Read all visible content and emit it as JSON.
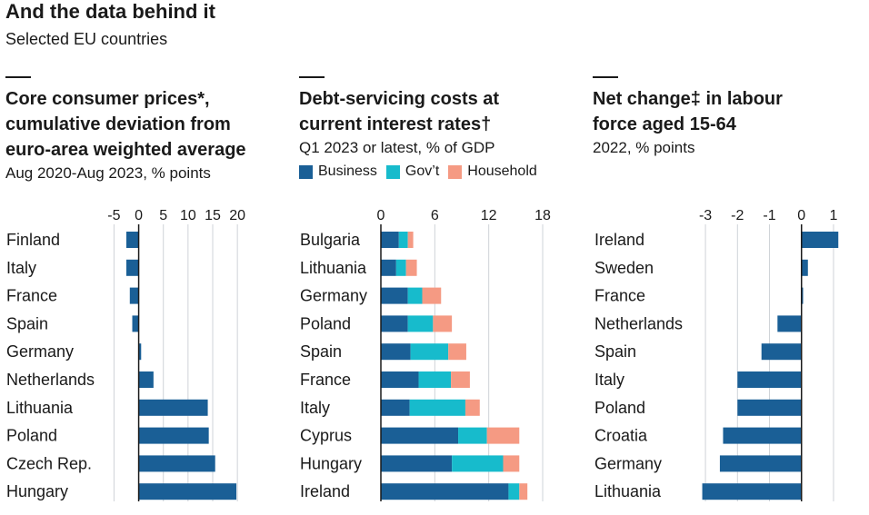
{
  "header": {
    "title": "And the data behind it",
    "subtitle": "Selected EU countries"
  },
  "colors": {
    "business": "#1a5f96",
    "govt": "#17bbcc",
    "household": "#f59a83",
    "bar": "#1a5f96",
    "grid": "#cfd3d8",
    "zero": "#1a1a1a"
  },
  "panels": [
    {
      "title_line1": "Core consumer prices*,",
      "title_line2": "cumulative deviation from",
      "title_line3": "euro-area weighted average",
      "subtitle": "Aug 2020-Aug 2023, % points"
    },
    {
      "title_line1": "Debt-servicing costs at",
      "title_line2": "current interest rates†",
      "title_line3": "",
      "subtitle": "Q1 2023 or latest, % of GDP"
    },
    {
      "title_line1": "Net change‡ in labour",
      "title_line2": "force aged 15-64",
      "title_line3": "",
      "subtitle": "2022, % points"
    }
  ],
  "legend": [
    "Business",
    "Gov’t",
    "Household"
  ],
  "chart_data": [
    {
      "type": "bar",
      "orientation": "horizontal",
      "categories": [
        "Finland",
        "Italy",
        "France",
        "Spain",
        "Germany",
        "Netherlands",
        "Lithuania",
        "Poland",
        "Czech Rep.",
        "Hungary"
      ],
      "values": [
        -2.5,
        -2.5,
        -1.8,
        -1.3,
        0.5,
        3.0,
        14.0,
        14.2,
        15.5,
        19.8
      ],
      "xlim": [
        -6,
        22
      ],
      "ticks": [
        -5,
        0,
        5,
        10,
        15,
        20
      ],
      "tick_labels": [
        "-5",
        "0",
        "5",
        "10",
        "15",
        "20"
      ],
      "grid": true
    },
    {
      "type": "bar",
      "orientation": "horizontal",
      "stacked": true,
      "categories": [
        "Bulgaria",
        "Lithuania",
        "Germany",
        "Poland",
        "Spain",
        "France",
        "Italy",
        "Cyprus",
        "Hungary",
        "Ireland"
      ],
      "series": [
        {
          "name": "Business",
          "values": [
            2.0,
            1.7,
            3.0,
            3.0,
            3.3,
            4.2,
            3.2,
            8.6,
            7.9,
            14.2
          ]
        },
        {
          "name": "Gov’t",
          "values": [
            1.0,
            1.1,
            1.6,
            2.8,
            4.2,
            3.6,
            6.2,
            3.2,
            5.7,
            1.2
          ]
        },
        {
          "name": "Household",
          "values": [
            0.6,
            1.2,
            2.1,
            2.1,
            2.0,
            2.1,
            1.6,
            3.6,
            1.8,
            0.9
          ]
        }
      ],
      "xlim": [
        0,
        18
      ],
      "ticks": [
        0,
        6,
        12,
        18
      ],
      "tick_labels": [
        "0",
        "6",
        "12",
        "18"
      ],
      "grid": true,
      "legend": "top"
    },
    {
      "type": "bar",
      "orientation": "horizontal",
      "categories": [
        "Ireland",
        "Sweden",
        "France",
        "Netherlands",
        "Spain",
        "Italy",
        "Poland",
        "Croatia",
        "Germany",
        "Lithuania"
      ],
      "values": [
        1.15,
        0.2,
        0.05,
        -0.75,
        -1.25,
        -2.0,
        -2.0,
        -2.45,
        -2.55,
        -3.1
      ],
      "xlim": [
        -3.4,
        1.2
      ],
      "ticks": [
        -3,
        -2,
        -1,
        0,
        1
      ],
      "tick_labels": [
        "-3",
        "-2",
        "-1",
        "0",
        "1"
      ],
      "grid": true
    }
  ]
}
